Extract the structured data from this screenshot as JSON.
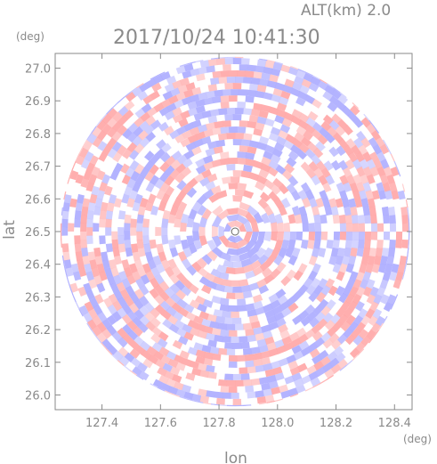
{
  "header": {
    "alt_label": "ALT(km) 2.0",
    "timestamp": "2017/10/24 10:41:30",
    "lat_unit": "(deg)",
    "lon_unit": "(deg)"
  },
  "chart_data": {
    "type": "heatmap",
    "title": "2017/10/24 10:41:30",
    "subtitle": "ALT(km) 2.0",
    "xlabel": "lon",
    "ylabel": "lat",
    "xlim": [
      127.24,
      128.46
    ],
    "ylim": [
      25.955,
      27.045
    ],
    "center": {
      "lon": 127.855,
      "lat": 26.5
    },
    "radius_deg": 0.535,
    "x_ticks": [
      127.4,
      127.6,
      127.8,
      128.0,
      128.2,
      128.4
    ],
    "x_tick_labels": [
      "127.4",
      "127.6",
      "127.8",
      "128.0",
      "128.2",
      "128.4"
    ],
    "y_ticks": [
      27.0,
      26.9,
      26.8,
      26.7,
      26.6,
      26.5,
      26.4,
      26.3,
      26.2,
      26.1,
      26.0
    ],
    "y_tick_labels": [
      "27.0",
      "26.9",
      "26.8",
      "26.7",
      "26.6",
      "26.5",
      "26.4",
      "26.3",
      "26.2",
      "26.1",
      "26.0"
    ],
    "colors": {
      "positive": "#ff9a9a",
      "negative": "#a0a0ff",
      "axis": "#8a8a8a"
    },
    "grid": false
  }
}
